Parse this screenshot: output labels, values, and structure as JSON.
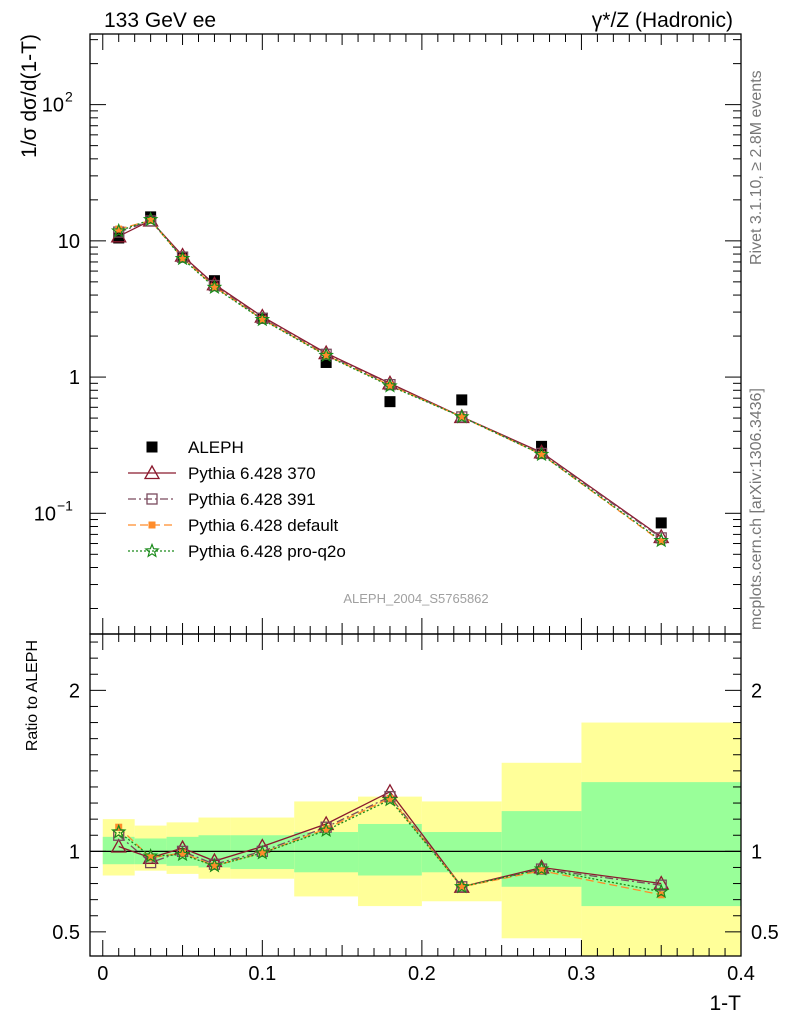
{
  "header": {
    "left": "133 GeV ee",
    "right": "γ*/Z (Hadronic)"
  },
  "side_labels": {
    "rivet": "Rivet 3.1.10, ≥ 2.8M events",
    "mcplots": "mcplots.cern.ch [arXiv:1306.3436]"
  },
  "watermark": "ALEPH_2004_S5765862",
  "colors": {
    "data": "#000000",
    "p370": "#8b1a2e",
    "p391": "#7a4a5e",
    "default": "#ff8c2a",
    "proq2o": "#1a8a1a",
    "band_inner": "#99ff99",
    "band_outer": "#ffff99"
  },
  "chart_data": [
    {
      "type": "scatter",
      "panel": "main",
      "ylabel": "1/σ  dσ/d(1-T)",
      "yscale": "log",
      "ylim": [
        0.013,
        330
      ],
      "xlim": [
        -0.008,
        0.4
      ],
      "y_ticks": [
        "10",
        "1"
      ],
      "legend_position": "lower-left",
      "x": [
        0.01,
        0.03,
        0.05,
        0.07,
        0.1,
        0.14,
        0.18,
        0.225,
        0.275,
        0.35
      ],
      "series": [
        {
          "name": "ALEPH",
          "marker": "square",
          "values": [
            10.5,
            15.0,
            7.6,
            5.1,
            2.7,
            1.28,
            0.66,
            0.68,
            0.31,
            0.085
          ]
        },
        {
          "name": "Pythia 6.428 370",
          "marker": "triangle",
          "values": [
            10.8,
            14.1,
            7.8,
            4.8,
            2.78,
            1.5,
            0.9,
            0.51,
            0.28,
            0.067
          ]
        },
        {
          "name": "Pythia 6.428 391",
          "marker": "open-square",
          "values": [
            11.6,
            14.0,
            7.6,
            4.7,
            2.7,
            1.47,
            0.88,
            0.51,
            0.275,
            0.066
          ]
        },
        {
          "name": "Pythia 6.428 default",
          "marker": "filled-square",
          "values": [
            12.2,
            14.1,
            7.5,
            4.6,
            2.66,
            1.45,
            0.87,
            0.51,
            0.27,
            0.062
          ]
        },
        {
          "name": "Pythia 6.428 pro-q2o",
          "marker": "star",
          "values": [
            11.8,
            14.3,
            7.4,
            4.55,
            2.64,
            1.44,
            0.86,
            0.51,
            0.27,
            0.063
          ]
        }
      ]
    },
    {
      "type": "line",
      "panel": "ratio",
      "xlabel": "1-T",
      "ylabel": "Ratio to ALEPH",
      "ylim": [
        0.35,
        2.35
      ],
      "xlim": [
        -0.008,
        0.4
      ],
      "y_ticks": [
        "2",
        "1",
        "0.5"
      ],
      "x_ticks": [
        "0",
        "0.1",
        "0.2",
        "0.3",
        "0.4"
      ],
      "bins": [
        [
          0.0,
          0.02
        ],
        [
          0.02,
          0.04
        ],
        [
          0.04,
          0.06
        ],
        [
          0.06,
          0.08
        ],
        [
          0.08,
          0.12
        ],
        [
          0.12,
          0.16
        ],
        [
          0.16,
          0.2
        ],
        [
          0.2,
          0.25
        ],
        [
          0.25,
          0.3
        ],
        [
          0.3,
          0.4
        ]
      ],
      "band_inner": [
        [
          0.92,
          1.09
        ],
        [
          0.92,
          1.08
        ],
        [
          0.91,
          1.09
        ],
        [
          0.9,
          1.1
        ],
        [
          0.89,
          1.1
        ],
        [
          0.87,
          1.12
        ],
        [
          0.85,
          1.17
        ],
        [
          0.87,
          1.12
        ],
        [
          0.78,
          1.25
        ],
        [
          0.66,
          1.43
        ]
      ],
      "band_outer": [
        [
          0.85,
          1.2
        ],
        [
          0.88,
          1.16
        ],
        [
          0.86,
          1.18
        ],
        [
          0.83,
          1.21
        ],
        [
          0.83,
          1.21
        ],
        [
          0.72,
          1.31
        ],
        [
          0.66,
          1.34
        ],
        [
          0.69,
          1.31
        ],
        [
          0.46,
          1.55
        ],
        [
          0.35,
          1.8
        ]
      ],
      "x": [
        0.01,
        0.03,
        0.05,
        0.07,
        0.1,
        0.14,
        0.18,
        0.225,
        0.275,
        0.35
      ],
      "series": [
        {
          "name": "Pythia 6.428 370",
          "values": [
            1.03,
            0.96,
            1.02,
            0.94,
            1.03,
            1.17,
            1.37,
            0.78,
            0.9,
            0.8
          ]
        },
        {
          "name": "Pythia 6.428 391",
          "values": [
            1.1,
            0.93,
            1.0,
            0.92,
            1.0,
            1.15,
            1.34,
            0.78,
            0.89,
            0.79
          ]
        },
        {
          "name": "Pythia 6.428 default",
          "values": [
            1.15,
            0.96,
            0.99,
            0.91,
            0.99,
            1.14,
            1.33,
            0.78,
            0.88,
            0.73
          ]
        },
        {
          "name": "Pythia 6.428 pro-q2o",
          "values": [
            1.12,
            0.97,
            0.98,
            0.91,
            0.99,
            1.13,
            1.32,
            0.78,
            0.89,
            0.75
          ]
        }
      ]
    }
  ]
}
